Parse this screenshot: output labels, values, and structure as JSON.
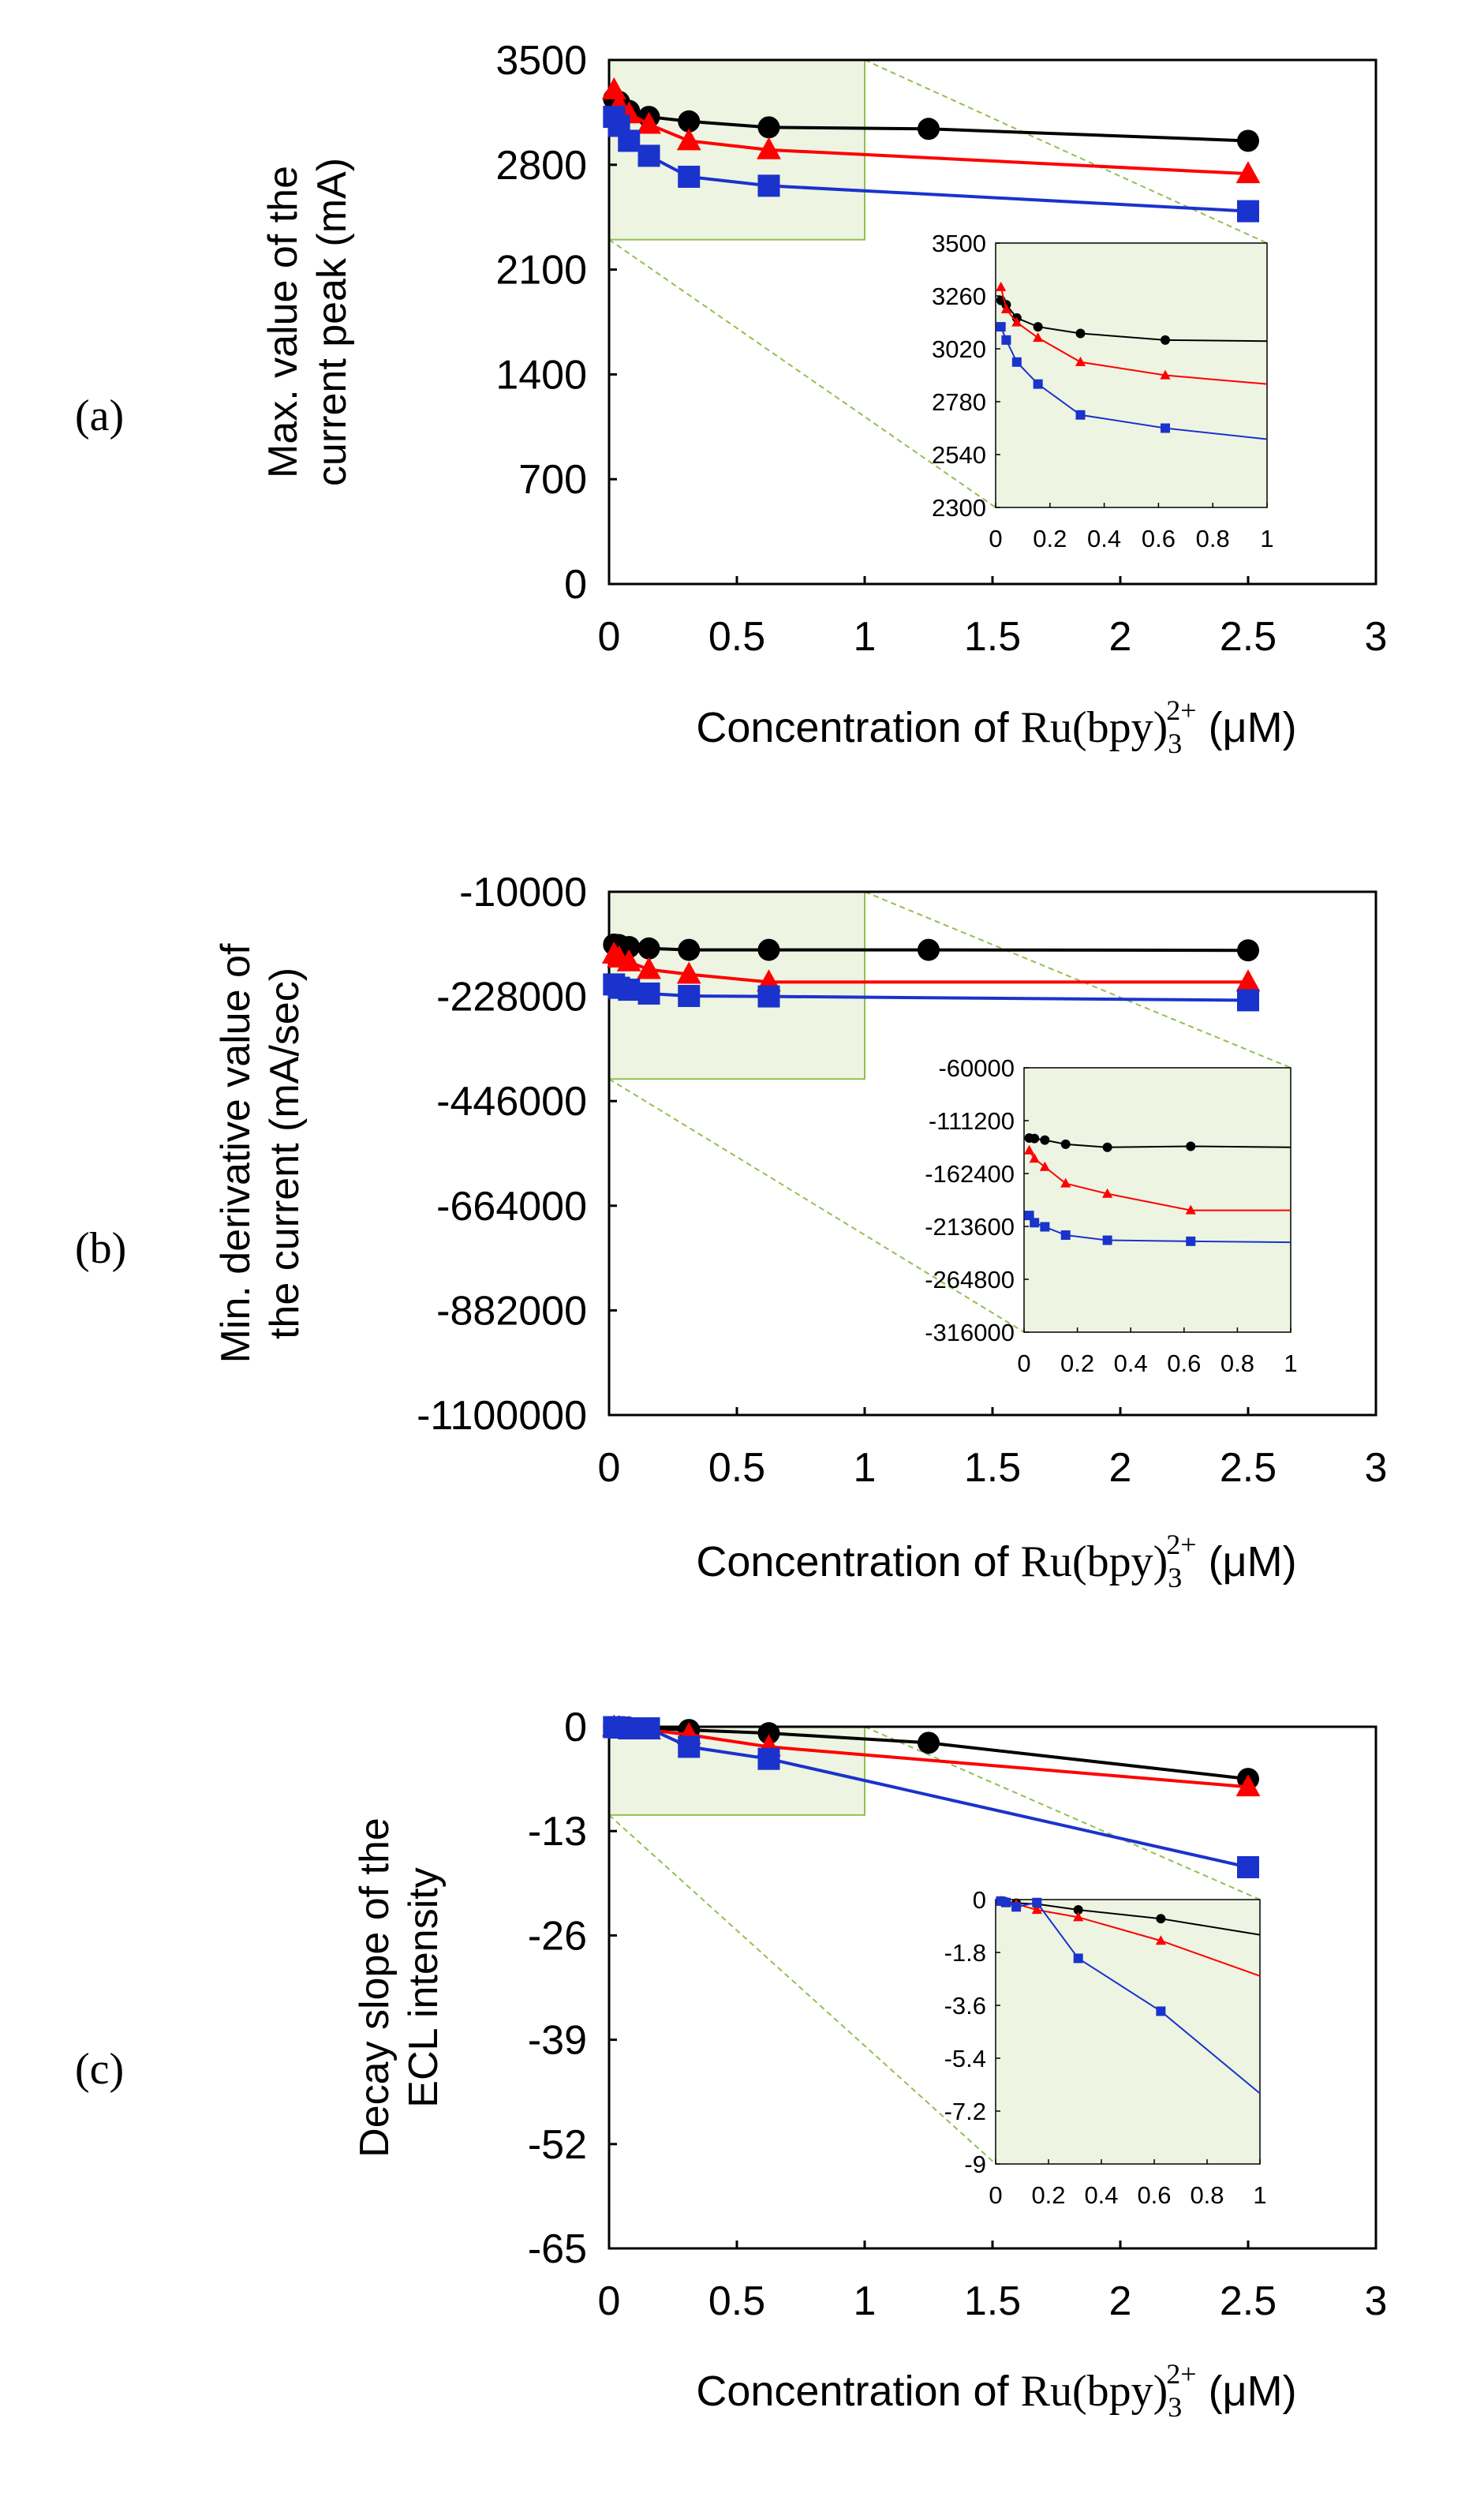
{
  "colors": {
    "black_series": "#000000",
    "red_series": "#ff0000",
    "blue_series": "#1a33cc",
    "zoom_fill": "#eef4e2",
    "zoom_edge": "#92c050"
  },
  "chart_data": [
    {
      "id": "a",
      "type": "line",
      "panel_label": "(a)",
      "ylabel_lines": [
        "Max. value of the",
        "current peak (mA)"
      ],
      "xlabel_prefix": "Concentration of ",
      "xlabel_chem": "Ru(bpy)",
      "xlabel_sub": "3",
      "xlabel_sup": "2+",
      "xlabel_unit": " (μM)",
      "xlim": [
        0,
        3
      ],
      "ylim": [
        0,
        3500
      ],
      "xticks": [
        "0",
        "0.5",
        "1",
        "1.5",
        "2",
        "2.5",
        "3"
      ],
      "yticks": [
        "0",
        "700",
        "1400",
        "2100",
        "2800",
        "3500"
      ],
      "zoom_region": {
        "x": [
          0,
          1
        ],
        "y": [
          2300,
          3500
        ]
      },
      "series": [
        {
          "name": "black",
          "color": "#000000",
          "marker": "circle",
          "x": [
            0.0195,
            0.039,
            0.078,
            0.156,
            0.3125,
            0.625,
            1.25,
            2.5
          ],
          "y": [
            3240,
            3220,
            3160,
            3120,
            3090,
            3050,
            3040,
            2960
          ]
        },
        {
          "name": "red",
          "color": "#ff0000",
          "marker": "triangle",
          "x": [
            0.0195,
            0.039,
            0.078,
            0.156,
            0.3125,
            0.625,
            2.5
          ],
          "y": [
            3300,
            3200,
            3140,
            3070,
            2960,
            2900,
            2740
          ]
        },
        {
          "name": "blue",
          "color": "#1a33cc",
          "marker": "square",
          "x": [
            0.0195,
            0.039,
            0.078,
            0.156,
            0.3125,
            0.625,
            2.5
          ],
          "y": [
            3120,
            3060,
            2960,
            2860,
            2720,
            2660,
            2490
          ]
        }
      ],
      "inset": {
        "xlim": [
          0,
          1
        ],
        "ylim": [
          2300,
          3500
        ],
        "xticks": [
          "0",
          "0.2",
          "0.4",
          "0.6",
          "0.8",
          "1"
        ],
        "yticks": [
          "2300",
          "2540",
          "2780",
          "3020",
          "3260",
          "3500"
        ],
        "series": [
          {
            "name": "black",
            "color": "#000000",
            "marker": "circle",
            "x": [
              0.0195,
              0.039,
              0.078,
              0.156,
              0.3125,
              0.625,
              1.0
            ],
            "y": [
              3240,
              3220,
              3160,
              3120,
              3090,
              3060,
              3055
            ]
          },
          {
            "name": "red",
            "color": "#ff0000",
            "marker": "triangle",
            "x": [
              0.0195,
              0.039,
              0.078,
              0.156,
              0.3125,
              0.625,
              1.0
            ],
            "y": [
              3300,
              3200,
              3140,
              3070,
              2960,
              2900,
              2860
            ]
          },
          {
            "name": "blue",
            "color": "#1a33cc",
            "marker": "square",
            "x": [
              0.0195,
              0.039,
              0.078,
              0.156,
              0.3125,
              0.625,
              1.0
            ],
            "y": [
              3120,
              3060,
              2960,
              2860,
              2720,
              2660,
              2610
            ]
          }
        ]
      }
    },
    {
      "id": "b",
      "type": "line",
      "panel_label": "(b)",
      "ylabel_lines": [
        "Min. derivative value of",
        "the current (mA/sec)"
      ],
      "xlabel_prefix": "Concentration of ",
      "xlabel_chem": "Ru(bpy)",
      "xlabel_sub": "3",
      "xlabel_sup": "2+",
      "xlabel_unit": " (μM)",
      "xlim": [
        0,
        3
      ],
      "ylim": [
        -1100000,
        -10000
      ],
      "xticks": [
        "0",
        "0.5",
        "1",
        "1.5",
        "2",
        "2.5",
        "3"
      ],
      "yticks": [
        "-1100000",
        "-882000",
        "-664000",
        "-446000",
        "-228000",
        "-10000"
      ],
      "zoom_region": {
        "x": [
          0,
          1
        ],
        "y": [
          -400000,
          -10000
        ]
      },
      "series": [
        {
          "name": "black",
          "color": "#000000",
          "marker": "circle",
          "x": [
            0.0195,
            0.039,
            0.078,
            0.156,
            0.3125,
            0.625,
            1.25,
            2.5
          ],
          "y": [
            -120000,
            -121000,
            -125000,
            -128000,
            -131000,
            -131000,
            -131000,
            -132000
          ]
        },
        {
          "name": "red",
          "color": "#ff0000",
          "marker": "triangle",
          "x": [
            0.0195,
            0.039,
            0.078,
            0.156,
            0.3125,
            0.625,
            2.5
          ],
          "y": [
            -140000,
            -148000,
            -156000,
            -172000,
            -182000,
            -198000,
            -198000
          ]
        },
        {
          "name": "blue",
          "color": "#1a33cc",
          "marker": "square",
          "x": [
            0.0195,
            0.039,
            0.078,
            0.156,
            0.3125,
            0.625,
            2.5
          ],
          "y": [
            -203000,
            -210000,
            -214000,
            -222000,
            -227000,
            -228000,
            -236000
          ]
        }
      ],
      "inset": {
        "xlim": [
          0,
          1
        ],
        "ylim": [
          -316000,
          -60000
        ],
        "xticks": [
          "0",
          "0.2",
          "0.4",
          "0.6",
          "0.8",
          "1"
        ],
        "yticks": [
          "-316000",
          "-264800",
          "-213600",
          "-162400",
          "-111200",
          "-60000"
        ],
        "series": [
          {
            "name": "black",
            "color": "#000000",
            "marker": "circle",
            "x": [
              0.0195,
              0.039,
              0.078,
              0.156,
              0.3125,
              0.625,
              1.0
            ],
            "y": [
              -128000,
              -128500,
              -130000,
              -134000,
              -137000,
              -136000,
              -137000
            ]
          },
          {
            "name": "red",
            "color": "#ff0000",
            "marker": "triangle",
            "x": [
              0.0195,
              0.039,
              0.078,
              0.156,
              0.3125,
              0.625,
              1.0
            ],
            "y": [
              -140000,
              -148000,
              -156000,
              -172000,
              -182000,
              -198000,
              -198000
            ]
          },
          {
            "name": "blue",
            "color": "#1a33cc",
            "marker": "square",
            "x": [
              0.0195,
              0.039,
              0.078,
              0.156,
              0.3125,
              0.625,
              1.0
            ],
            "y": [
              -203000,
              -210000,
              -214000,
              -222000,
              -227000,
              -228000,
              -229000
            ]
          }
        ]
      }
    },
    {
      "id": "c",
      "type": "line",
      "panel_label": "(c)",
      "ylabel_lines": [
        "Decay slope of the",
        "ECL intensity"
      ],
      "xlabel_prefix": "Concentration of ",
      "xlabel_chem": "Ru(bpy)",
      "xlabel_sub": "3",
      "xlabel_sup": "2+",
      "xlabel_unit": " (μM)",
      "xlim": [
        0,
        3
      ],
      "ylim": [
        -65,
        0
      ],
      "xticks": [
        "0",
        "0.5",
        "1",
        "1.5",
        "2",
        "2.5",
        "3"
      ],
      "yticks": [
        "-65",
        "-52",
        "-39",
        "-26",
        "-13",
        "0"
      ],
      "zoom_region": {
        "x": [
          0,
          1
        ],
        "y": [
          -11,
          0
        ]
      },
      "series": [
        {
          "name": "black",
          "color": "#000000",
          "marker": "circle",
          "x": [
            0.0195,
            0.039,
            0.078,
            0.156,
            0.3125,
            0.625,
            1.25,
            2.5
          ],
          "y": [
            -0.05,
            -0.08,
            -0.12,
            -0.2,
            -0.4,
            -0.8,
            -2.0,
            -6.5
          ]
        },
        {
          "name": "red",
          "color": "#ff0000",
          "marker": "triangle",
          "x": [
            0.0195,
            0.039,
            0.078,
            0.156,
            0.3125,
            0.625,
            2.5
          ],
          "y": [
            -0.05,
            -0.1,
            -0.2,
            -0.4,
            -1.0,
            -2.5,
            -7.5
          ]
        },
        {
          "name": "blue",
          "color": "#1a33cc",
          "marker": "square",
          "x": [
            0.0195,
            0.039,
            0.078,
            0.156,
            0.3125,
            0.625,
            2.5
          ],
          "y": [
            -0.05,
            -0.1,
            -0.2,
            -0.2,
            -2.5,
            -4.0,
            -17.5
          ]
        }
      ],
      "inset": {
        "xlim": [
          0,
          1
        ],
        "ylim": [
          -9,
          0
        ],
        "xticks": [
          "0",
          "0.2",
          "0.4",
          "0.6",
          "0.8",
          "1"
        ],
        "yticks": [
          "-9",
          "-7.2",
          "-5.4",
          "-3.6",
          "-1.8",
          "0"
        ],
        "series": [
          {
            "name": "black",
            "color": "#000000",
            "marker": "circle",
            "x": [
              0.0195,
              0.039,
              0.078,
              0.156,
              0.3125,
              0.625,
              1.0
            ],
            "y": [
              -0.05,
              -0.08,
              -0.12,
              -0.15,
              -0.35,
              -0.65,
              -1.2
            ]
          },
          {
            "name": "red",
            "color": "#ff0000",
            "marker": "triangle",
            "x": [
              0.0195,
              0.039,
              0.078,
              0.156,
              0.3125,
              0.625,
              1.0
            ],
            "y": [
              -0.05,
              -0.1,
              -0.15,
              -0.35,
              -0.6,
              -1.4,
              -2.6
            ]
          },
          {
            "name": "blue",
            "color": "#1a33cc",
            "marker": "square",
            "x": [
              0.0195,
              0.039,
              0.078,
              0.156,
              0.3125,
              0.625,
              1.0
            ],
            "y": [
              -0.05,
              -0.1,
              -0.25,
              -0.1,
              -2.0,
              -3.8,
              -6.6
            ]
          }
        ]
      }
    }
  ]
}
